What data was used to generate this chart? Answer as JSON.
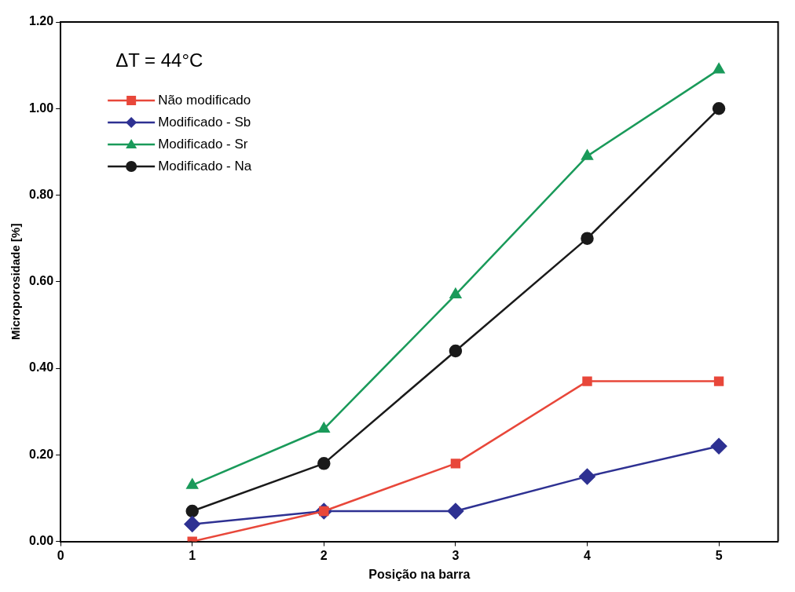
{
  "chart_data": {
    "type": "line",
    "xlabel": "Posição na barra",
    "ylabel": "Microporosidade [%]",
    "x": [
      1,
      2,
      3,
      4,
      5
    ],
    "xlim": [
      0,
      5.45
    ],
    "xticks": [
      0,
      1,
      2,
      3,
      4,
      5
    ],
    "ylim": [
      0,
      1.2
    ],
    "yticks": [
      {
        "value": 0,
        "label": "0.00"
      },
      {
        "value": 0.2,
        "label": "0.20"
      },
      {
        "value": 0.4,
        "label": "0.40"
      },
      {
        "value": 0.6,
        "label": "0.60"
      },
      {
        "value": 0.8,
        "label": "0.80"
      },
      {
        "value": 1,
        "label": "1.00"
      },
      {
        "value": 1.2,
        "label": "1.20"
      }
    ],
    "annotations": [
      "ΔT = 44°C"
    ],
    "legend": "top left",
    "grid": false,
    "series": [
      {
        "name": "Não modificado",
        "color": "#e8473a",
        "marker": "square",
        "values": [
          0,
          0.07,
          0.18,
          0.37,
          0.37
        ]
      },
      {
        "name": "Modificado - Sb",
        "color": "#2e3192",
        "marker": "diamond",
        "values": [
          0.04,
          0.07,
          0.07,
          0.15,
          0.22
        ]
      },
      {
        "name": "Modificado - Sr",
        "color": "#1a9a5a",
        "marker": "triangle",
        "values": [
          0.13,
          0.26,
          0.57,
          0.89,
          1.09
        ]
      },
      {
        "name": "Modificado - Na",
        "color": "#1a1a1a",
        "marker": "circle",
        "values": [
          0.07,
          0.18,
          0.44,
          0.7,
          1
        ]
      }
    ]
  }
}
